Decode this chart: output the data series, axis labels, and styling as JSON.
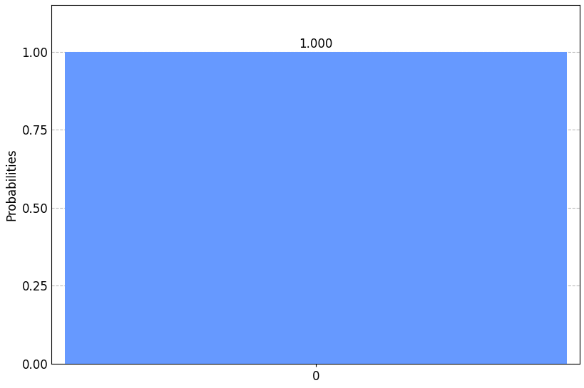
{
  "categories": [
    "0"
  ],
  "values": [
    1.0
  ],
  "bar_color": "#6699ff",
  "ylabel": "Probabilities",
  "ylim": [
    0.0,
    1.15
  ],
  "yticks": [
    0.0,
    0.25,
    0.5,
    0.75,
    1.0
  ],
  "bar_label": "1.000",
  "background_color": "#ffffff",
  "grid_color": "#aaaaaa",
  "bar_width": 0.95,
  "label_fontsize": 12,
  "tick_fontsize": 12,
  "annotation_fontsize": 12
}
